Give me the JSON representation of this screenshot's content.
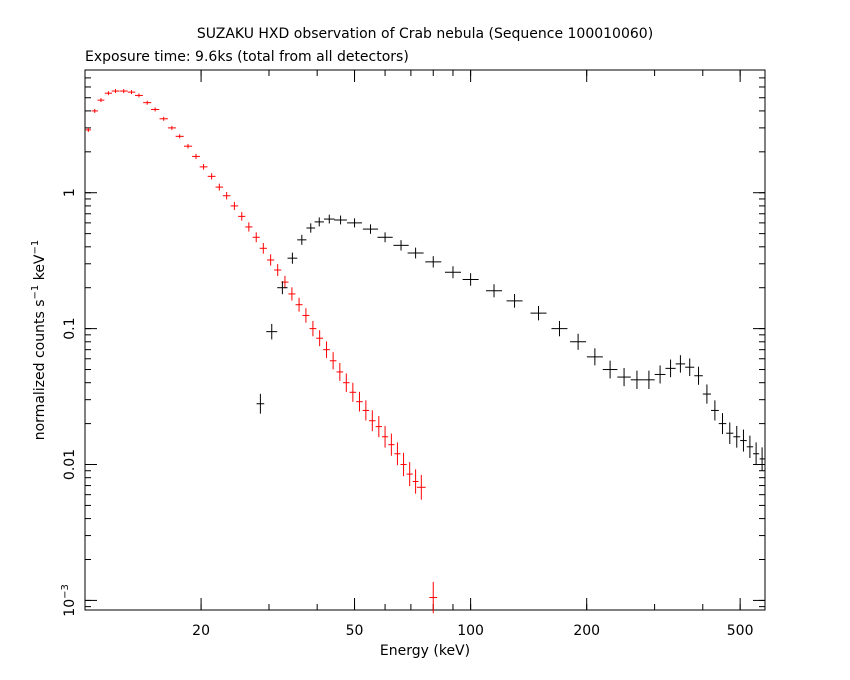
{
  "chart_data": {
    "type": "scatter",
    "title": "SUZAKU HXD observation of Crab nebula (Sequence 100010060)",
    "subtitle": "Exposure time: 9.6ks (total from all detectors)",
    "xlabel": "Energy (keV)",
    "ylabel_main": "normalized counts s",
    "ylabel_sup1": "−1",
    "ylabel_mid": " keV",
    "ylabel_sup2": "−1",
    "x_scale": "log",
    "y_scale": "log",
    "xlim": [
      10,
      580
    ],
    "ylim": [
      0.00085,
      8
    ],
    "x_ticks": [
      {
        "value": 20,
        "label": "20"
      },
      {
        "value": 50,
        "label": "50"
      },
      {
        "value": 100,
        "label": "100"
      },
      {
        "value": 200,
        "label": "200"
      },
      {
        "value": 500,
        "label": "500"
      }
    ],
    "y_ticks": [
      {
        "value": 1,
        "label": "1",
        "base": "",
        "exp": ""
      },
      {
        "value": 0.1,
        "label": "0.1",
        "base": "",
        "exp": ""
      },
      {
        "value": 0.01,
        "label": "0.01",
        "base": "",
        "exp": ""
      },
      {
        "value": 0.001,
        "label": "",
        "base": "10",
        "exp": "−3"
      }
    ],
    "grid": false,
    "legend": "none",
    "series": [
      {
        "color": "#ff0000",
        "points": [
          [
            10.2,
            2.9
          ],
          [
            10.6,
            4.0
          ],
          [
            11.0,
            4.8
          ],
          [
            11.5,
            5.4
          ],
          [
            12.0,
            5.6
          ],
          [
            12.6,
            5.6
          ],
          [
            13.2,
            5.5
          ],
          [
            13.8,
            5.2
          ],
          [
            14.5,
            4.6
          ],
          [
            15.2,
            4.1
          ],
          [
            16.0,
            3.5
          ],
          [
            16.8,
            3.0
          ],
          [
            17.6,
            2.6
          ],
          [
            18.5,
            2.2
          ],
          [
            19.4,
            1.85
          ],
          [
            20.3,
            1.55
          ],
          [
            21.3,
            1.32
          ],
          [
            22.3,
            1.1
          ],
          [
            23.3,
            0.95
          ],
          [
            24.4,
            0.8
          ],
          [
            25.5,
            0.67
          ],
          [
            26.6,
            0.56
          ],
          [
            27.8,
            0.47
          ],
          [
            29.0,
            0.39
          ],
          [
            30.3,
            0.32
          ],
          [
            31.6,
            0.27
          ],
          [
            33.0,
            0.22
          ],
          [
            34.4,
            0.18
          ],
          [
            35.9,
            0.15
          ],
          [
            37.4,
            0.125
          ],
          [
            39.0,
            0.1
          ],
          [
            40.6,
            0.085
          ],
          [
            42.3,
            0.07
          ],
          [
            44.0,
            0.058
          ],
          [
            45.8,
            0.048
          ],
          [
            47.6,
            0.04
          ],
          [
            49.5,
            0.034
          ],
          [
            51.5,
            0.029
          ],
          [
            53.5,
            0.025
          ],
          [
            55.6,
            0.021
          ],
          [
            57.8,
            0.019
          ],
          [
            60.0,
            0.016
          ],
          [
            62.3,
            0.014
          ],
          [
            64.6,
            0.012
          ],
          [
            67.0,
            0.01
          ],
          [
            69.5,
            0.0085
          ],
          [
            72.0,
            0.0075
          ],
          [
            74.5,
            0.0068
          ],
          [
            80.0,
            0.00105
          ]
        ]
      },
      {
        "color": "#000000",
        "points": [
          [
            28.5,
            0.028
          ],
          [
            30.5,
            0.095
          ],
          [
            32.5,
            0.2
          ],
          [
            34.5,
            0.33
          ],
          [
            36.5,
            0.45
          ],
          [
            38.5,
            0.55
          ],
          [
            40.5,
            0.61
          ],
          [
            43.0,
            0.64
          ],
          [
            46.0,
            0.63
          ],
          [
            50.0,
            0.6
          ],
          [
            55.0,
            0.54
          ],
          [
            60.0,
            0.47
          ],
          [
            66.0,
            0.41
          ],
          [
            72.0,
            0.36
          ],
          [
            80.0,
            0.31
          ],
          [
            90.0,
            0.26
          ],
          [
            100.0,
            0.23
          ],
          [
            115.0,
            0.19
          ],
          [
            130.0,
            0.16
          ],
          [
            150.0,
            0.13
          ],
          [
            170.0,
            0.1
          ],
          [
            190.0,
            0.08
          ],
          [
            210.0,
            0.062
          ],
          [
            230.0,
            0.05
          ],
          [
            250.0,
            0.044
          ],
          [
            270.0,
            0.042
          ],
          [
            290.0,
            0.042
          ],
          [
            310.0,
            0.046
          ],
          [
            330.0,
            0.051
          ],
          [
            350.0,
            0.055
          ],
          [
            370.0,
            0.052
          ],
          [
            390.0,
            0.045
          ],
          [
            410.0,
            0.033
          ],
          [
            430.0,
            0.025
          ],
          [
            450.0,
            0.02
          ],
          [
            470.0,
            0.017
          ],
          [
            490.0,
            0.016
          ],
          [
            510.0,
            0.015
          ],
          [
            530.0,
            0.0135
          ],
          [
            550.0,
            0.012
          ],
          [
            570.0,
            0.011
          ]
        ]
      }
    ]
  }
}
